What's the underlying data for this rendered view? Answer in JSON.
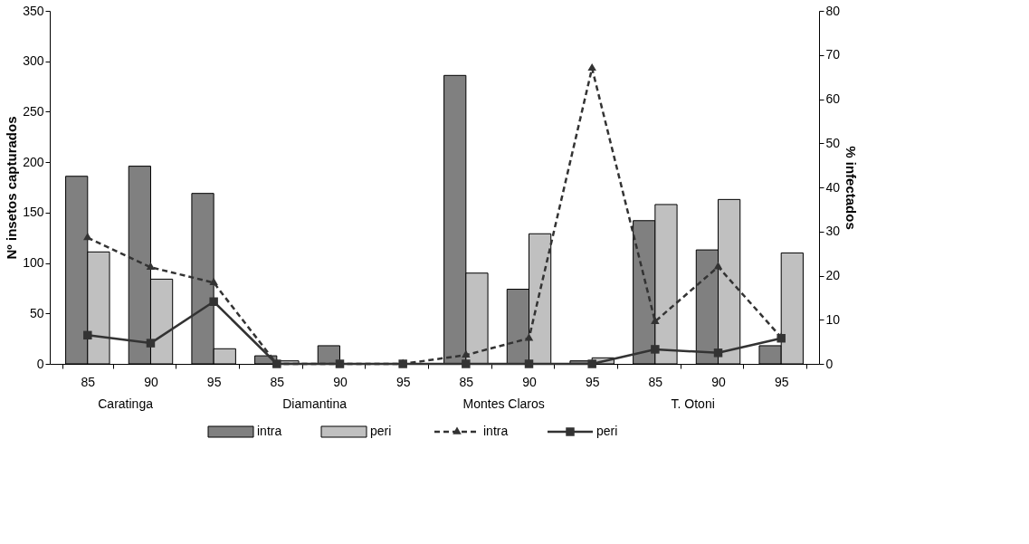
{
  "chart_data": {
    "type": "bar",
    "categories": [
      "85",
      "90",
      "95",
      "85",
      "90",
      "95",
      "85",
      "90",
      "95",
      "85",
      "90",
      "95"
    ],
    "annotations": [
      "Caratinga",
      "Diamantina",
      "Montes Claros",
      "T. Otoni"
    ],
    "ylabel": "Nº insetos capturados",
    "y2label": "% infectados",
    "ylim": [
      0,
      350
    ],
    "yticks": [
      0,
      50,
      100,
      150,
      200,
      250,
      300,
      350
    ],
    "y2lim": [
      0,
      80
    ],
    "y2ticks": [
      0,
      10,
      20,
      30,
      40,
      50,
      60,
      70,
      80
    ],
    "legend": "bottom",
    "grid": false,
    "series": [
      {
        "name": "intra",
        "color": "#808080",
        "values": [
          186,
          196,
          169,
          8,
          18,
          0,
          286,
          74,
          3,
          142,
          113,
          18
        ]
      },
      {
        "name": "peri",
        "color": "#c0c0c0",
        "values": [
          111,
          84,
          15,
          3,
          0,
          0,
          90,
          129,
          6,
          158,
          163,
          110
        ]
      },
      {
        "name": "intra",
        "type": "line",
        "axis": "y2",
        "color": "#333333",
        "line_style": "dashed",
        "marker": "triangle",
        "values": [
          28.6,
          21.9,
          18.4,
          0,
          0,
          0,
          2,
          5.8,
          67,
          9.6,
          22,
          6
        ]
      },
      {
        "name": "peri",
        "type": "line",
        "axis": "y2",
        "color": "#333333",
        "line_style": "solid",
        "marker": "square",
        "values": [
          6.5,
          4.7,
          14.1,
          0,
          0,
          0,
          0,
          0,
          0,
          3.3,
          2.5,
          5.8
        ]
      }
    ]
  }
}
